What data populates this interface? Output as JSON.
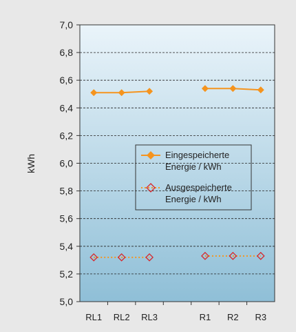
{
  "chart_data": {
    "type": "line",
    "ylabel": "kWh",
    "ylim": [
      5.0,
      7.0
    ],
    "yticks": [
      "5,0",
      "5,2",
      "5,4",
      "5,6",
      "5,8",
      "6,0",
      "6,2",
      "6,4",
      "6,6",
      "6,8",
      "7,0"
    ],
    "categories": [
      "RL1",
      "RL2",
      "RL3",
      "",
      "R1",
      "R2",
      "R3"
    ],
    "grid": true,
    "legend_position": "center-right",
    "series": [
      {
        "name": "Eingespeicherte Energie / kWh",
        "name_lines": [
          "Eingespeicherte",
          "Energie / kWh"
        ],
        "color": "#f5941e",
        "marker": "filled-diamond",
        "line_style": "solid",
        "segments": [
          {
            "x": [
              0,
              1,
              2
            ],
            "y": [
              6.51,
              6.51,
              6.52
            ]
          },
          {
            "x": [
              4,
              5,
              6
            ],
            "y": [
              6.54,
              6.54,
              6.53
            ]
          }
        ]
      },
      {
        "name": "Ausgespeicherte Energie / kWh",
        "name_lines": [
          "Ausgespeicherte",
          "Energie / kWh"
        ],
        "color": "#f5941e",
        "marker_color": "#d7262b",
        "marker": "hollow-diamond",
        "line_style": "dotted",
        "segments": [
          {
            "x": [
              0,
              1,
              2
            ],
            "y": [
              5.32,
              5.32,
              5.32
            ]
          },
          {
            "x": [
              4,
              5,
              6
            ],
            "y": [
              5.33,
              5.33,
              5.33
            ]
          }
        ]
      }
    ],
    "background_gradient": [
      "#eaf4fa",
      "#8fbfd7"
    ]
  }
}
